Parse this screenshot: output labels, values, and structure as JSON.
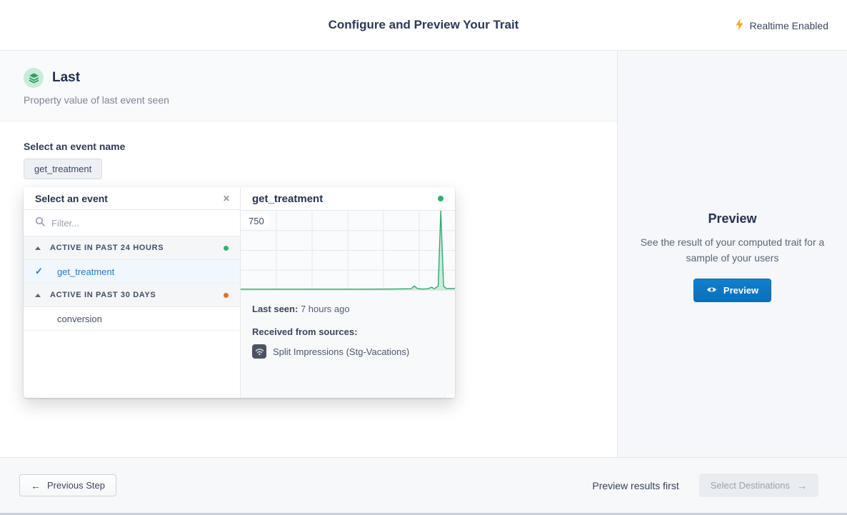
{
  "header": {
    "title": "Configure and Preview Your Trait",
    "realtime": {
      "label": "Realtime Enabled",
      "icon_color": "#f6a623"
    }
  },
  "trait": {
    "name": "Last",
    "description": "Property value of last event seen"
  },
  "event_select": {
    "label": "Select an event name",
    "selected_event": "get_treatment"
  },
  "event_picker": {
    "title": "Select an event",
    "filter_placeholder": "Filter...",
    "groups": [
      {
        "label": "ACTIVE IN PAST 24 HOURS",
        "status_color": "#2eb370",
        "items": [
          {
            "name": "get_treatment",
            "selected": true
          }
        ]
      },
      {
        "label": "ACTIVE IN PAST 30 DAYS",
        "status_color": "#e0702b",
        "items": [
          {
            "name": "conversion",
            "selected": false
          }
        ]
      }
    ]
  },
  "event_detail": {
    "title": "get_treatment",
    "status_color": "#2eb370",
    "last_seen_label": "Last seen:",
    "last_seen_value": "7 hours ago",
    "sources_label": "Received from sources:",
    "sources": [
      {
        "name": "Split Impressions (Stg-Vacations)"
      }
    ]
  },
  "chart_data": {
    "type": "area",
    "title": "get_treatment",
    "ylabel": "",
    "xlabel": "",
    "ylim": [
      0,
      750
    ],
    "y_top_label": "750",
    "grid": true,
    "grid_columns": 6,
    "grid_rows": 4,
    "line_color": "#36a874",
    "fill_color": "rgba(54,168,116,0.22)",
    "points": [
      {
        "x": 0.0,
        "y": 8
      },
      {
        "x": 0.55,
        "y": 8
      },
      {
        "x": 0.72,
        "y": 9
      },
      {
        "x": 0.795,
        "y": 12
      },
      {
        "x": 0.81,
        "y": 38
      },
      {
        "x": 0.825,
        "y": 14
      },
      {
        "x": 0.85,
        "y": 9
      },
      {
        "x": 0.875,
        "y": 12
      },
      {
        "x": 0.89,
        "y": 26
      },
      {
        "x": 0.905,
        "y": 12
      },
      {
        "x": 0.922,
        "y": 40
      },
      {
        "x": 0.934,
        "y": 750
      },
      {
        "x": 0.947,
        "y": 35
      },
      {
        "x": 0.96,
        "y": 14
      },
      {
        "x": 1.0,
        "y": 15
      }
    ]
  },
  "preview_panel": {
    "title": "Preview",
    "description": "See the result of your computed trait for a sample of your users",
    "button_label": "Preview"
  },
  "footer": {
    "previous_label": "Previous Step",
    "hint": "Preview results first",
    "next_label": "Select Destinations"
  },
  "icons": {
    "back_arrow": "←",
    "forward_arrow": "→",
    "close": "✕",
    "check": "✓"
  },
  "colors": {
    "accent_blue": "#0e7bc4",
    "green": "#36a874",
    "orange": "#e0702b",
    "bolt": "#f6a623"
  }
}
